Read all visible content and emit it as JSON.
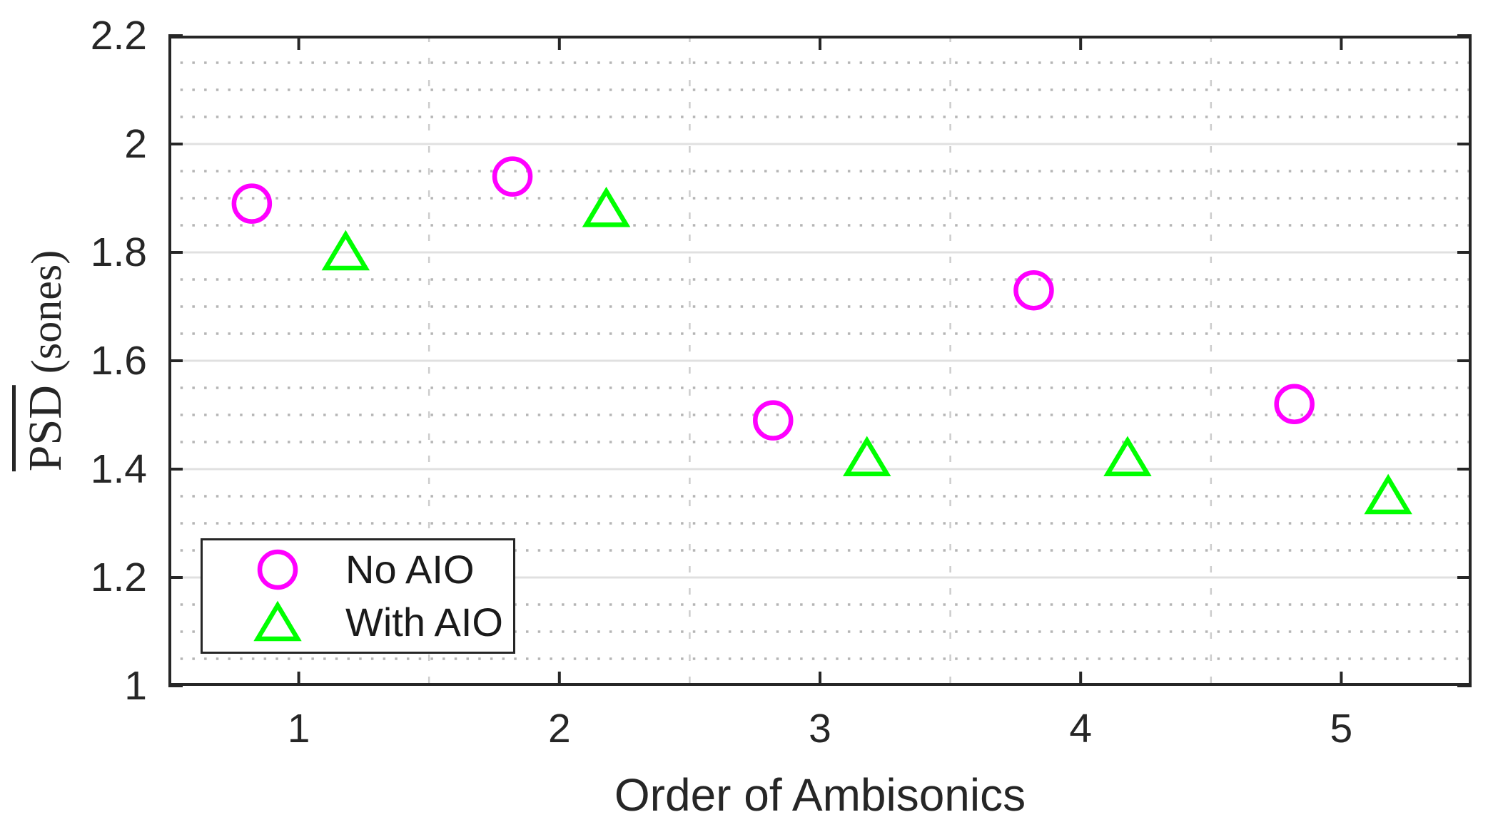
{
  "figure": {
    "background": "#ffffff"
  },
  "chart_data": {
    "type": "scatter",
    "title": "",
    "xlabel": "Order of Ambisonics",
    "ylabel_main": "PSD",
    "ylabel_main_overline": true,
    "ylabel_unit": "(sones)",
    "xlim": [
      0.5,
      5.5
    ],
    "ylim": [
      1,
      2.2
    ],
    "x_ticks": [
      1,
      2,
      3,
      4,
      5
    ],
    "y_ticks": [
      "1",
      "1.2",
      "1.4",
      "1.6",
      "1.8",
      "2",
      "2.2"
    ],
    "y_tick_values": [
      1,
      1.2,
      1.4,
      1.6,
      1.8,
      2,
      2.2
    ],
    "y_minor_step": 0.05,
    "x_minor_gridlines": [
      1.5,
      2.5,
      3.5,
      4.5
    ],
    "grid": {
      "y_major_style": "solid",
      "y_minor_style": "dotted",
      "x_major_style": "none",
      "x_minor_style": "dashed",
      "major_color": "#e0e0e0",
      "y_minor_color": "#b5b5b5",
      "x_minor_color": "#cdcdcd"
    },
    "axis_color": "#262626",
    "series": [
      {
        "name": "No AIO",
        "marker": "circle",
        "color": "#ff00ff",
        "x": [
          0.82,
          1.82,
          2.82,
          3.82,
          4.82
        ],
        "y": [
          1.89,
          1.94,
          1.49,
          1.73,
          1.52
        ]
      },
      {
        "name": "With AIO",
        "marker": "triangle",
        "color": "#00ff00",
        "x": [
          1.18,
          2.18,
          3.18,
          4.18,
          5.18
        ],
        "y": [
          1.8,
          1.88,
          1.42,
          1.42,
          1.35
        ]
      }
    ],
    "legend": {
      "position": "southwest",
      "entries": [
        "No AIO",
        "With AIO"
      ]
    }
  }
}
